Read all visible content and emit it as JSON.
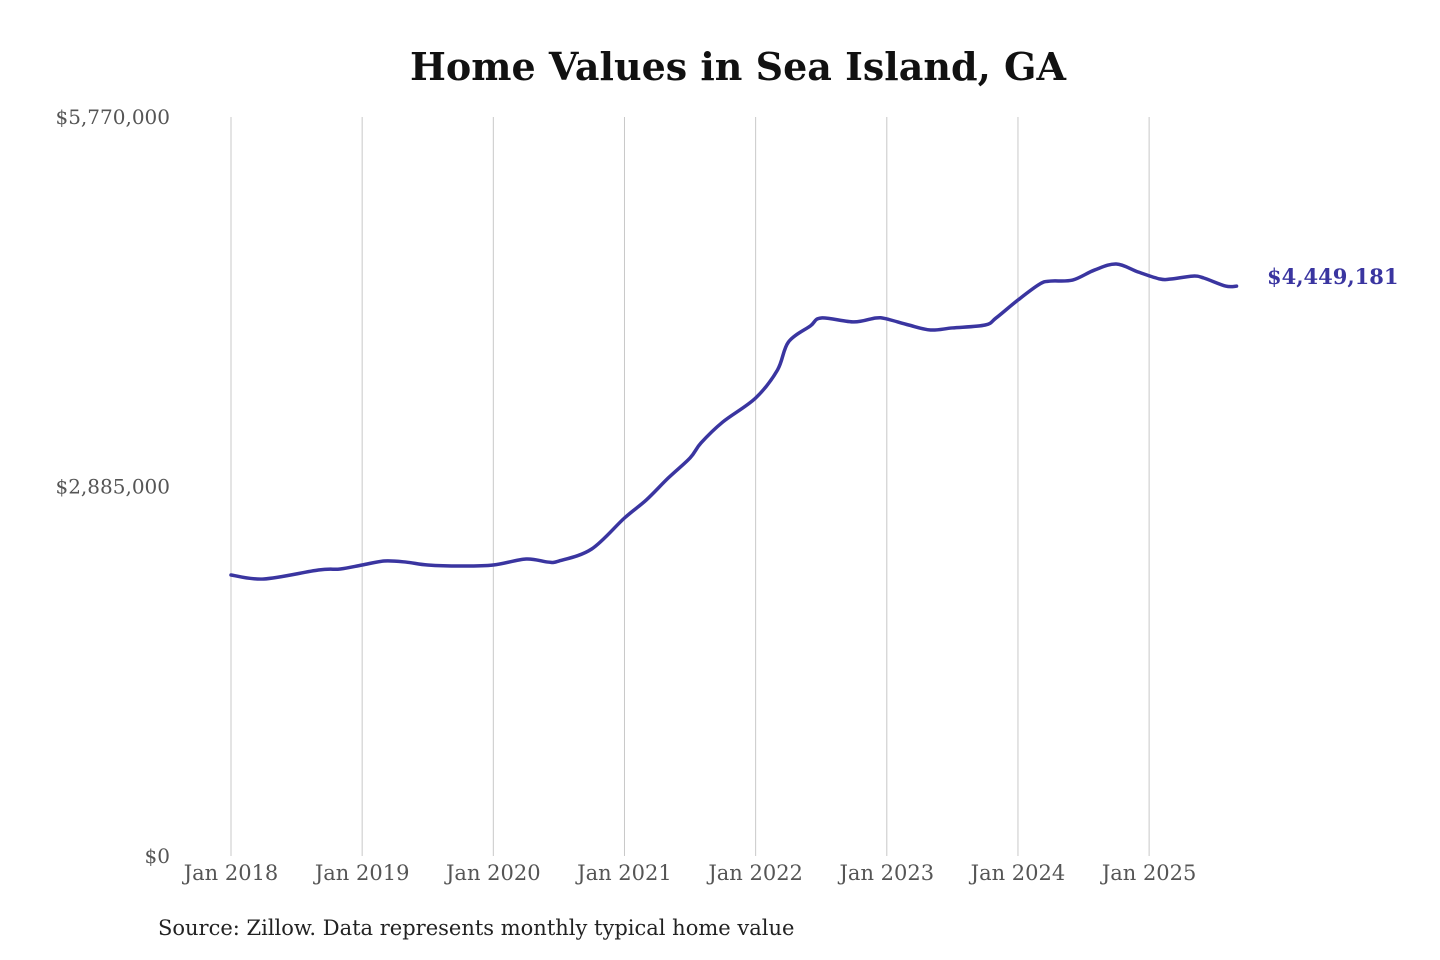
{
  "chart_data": {
    "type": "line",
    "title": "Home Values in Sea Island, GA",
    "source": "Source: Zillow. Data represents monthly typical home value",
    "xlabel": "",
    "ylabel": "",
    "ylim": [
      0,
      5770000
    ],
    "y_ticks": [
      "$0",
      "$2,885,000",
      "$5,770,000"
    ],
    "y_tick_values": [
      0,
      2885000,
      5770000
    ],
    "x_ticks": [
      "Jan 2018",
      "Jan 2019",
      "Jan 2020",
      "Jan 2021",
      "Jan 2022",
      "Jan 2023",
      "Jan 2024",
      "Jan 2025"
    ],
    "x_tick_dates": [
      "2018-01",
      "2019-01",
      "2020-01",
      "2021-01",
      "2022-01",
      "2023-01",
      "2024-01",
      "2025-01"
    ],
    "grid": "vertical",
    "line_color": "#3a35a0",
    "end_label": "$4,449,181",
    "points": [
      [
        "2018-01",
        2194000
      ],
      [
        "2018-04",
        2163000
      ],
      [
        "2018-09",
        2233000
      ],
      [
        "2018-11",
        2241000
      ],
      [
        "2019-01",
        2272000
      ],
      [
        "2019-03",
        2303000
      ],
      [
        "2019-05",
        2295000
      ],
      [
        "2019-07",
        2272000
      ],
      [
        "2019-10",
        2264000
      ],
      [
        "2020-01",
        2272000
      ],
      [
        "2020-04",
        2319000
      ],
      [
        "2020-06",
        2295000
      ],
      [
        "2020-07",
        2303000
      ],
      [
        "2020-10",
        2397000
      ],
      [
        "2021-01",
        2639000
      ],
      [
        "2021-03",
        2780000
      ],
      [
        "2021-05",
        2951000
      ],
      [
        "2021-07",
        3108000
      ],
      [
        "2021-08",
        3225000
      ],
      [
        "2021-10",
        3389000
      ],
      [
        "2022-01",
        3576000
      ],
      [
        "2022-03",
        3795000
      ],
      [
        "2022-04",
        4013000
      ],
      [
        "2022-06",
        4138000
      ],
      [
        "2022-07",
        4201000
      ],
      [
        "2022-10",
        4170000
      ],
      [
        "2022-12",
        4201000
      ],
      [
        "2023-01",
        4193000
      ],
      [
        "2023-03",
        4146000
      ],
      [
        "2023-05",
        4107000
      ],
      [
        "2023-07",
        4123000
      ],
      [
        "2023-10",
        4146000
      ],
      [
        "2023-11",
        4201000
      ],
      [
        "2024-01",
        4341000
      ],
      [
        "2024-03",
        4466000
      ],
      [
        "2024-04",
        4489000
      ],
      [
        "2024-06",
        4497000
      ],
      [
        "2024-08",
        4575000
      ],
      [
        "2024-10",
        4622000
      ],
      [
        "2024-12",
        4560000
      ],
      [
        "2025-02",
        4505000
      ],
      [
        "2025-03",
        4505000
      ],
      [
        "2025-05",
        4528000
      ],
      [
        "2025-06",
        4513000
      ],
      [
        "2025-08",
        4450000
      ],
      [
        "2025-09",
        4449181
      ]
    ]
  }
}
